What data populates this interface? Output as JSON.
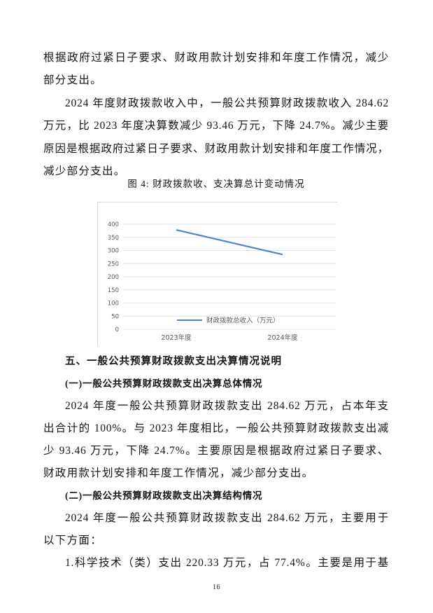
{
  "text": {
    "p1": {
      "l1": "根据政府过紧日子要求、财政用款计划安排和年度工作情况，减少",
      "l2": "部分支出。"
    },
    "p2": {
      "l1": "2024 年度财政拨款收入中，一般公共预算财政拨款收入 284.62",
      "l2": "万元，比 2023 年度决算数减少 93.46 万元，下降 24.7%。减少主要",
      "l3": "原因是根据政府过紧日子要求、财政用款计划安排和年度工作情况，",
      "l4": "减少部分支出。"
    },
    "figure_caption": "图 4: 财政拨款收、支决算总计变动情况",
    "heading5": "五、一般公共预算财政拨款支出决算情况说明",
    "sub1": "(一)一般公共预算财政拨款支出决算总体情况",
    "p3": {
      "l1": "2024 年度一般公共预算财政拨款支出 284.62 万元，占本年支",
      "l2": "出合计的 100%。与 2023 年度相比，一般公共预算财政拨款支出减",
      "l3": "少 93.46 万元，下降 24.7%。主要原因是根据政府过紧日子要求、",
      "l4": "财政用款计划安排和年度工作情况，减少部分支出。"
    },
    "sub2": "(二)一般公共预算财政拨款支出决算结构情况",
    "p4": {
      "l1": "2024 年度一般公共预算财政拨款支出 284.62 万元，主要用于",
      "l2": "以下方面："
    },
    "p5": {
      "l1": "1.科学技术（类）支出 220.33 万元，占 77.4%。主要是用于基"
    },
    "page_number": "16"
  },
  "chart_data": {
    "type": "line",
    "title": "图 4: 财政拨款收、支决算总计变动情况",
    "categories": [
      "2023年度",
      "2024年度"
    ],
    "series": [
      {
        "name": "财政拨款总收入（万元）",
        "values": [
          378.08,
          284.62
        ],
        "color": "#4e86c8"
      }
    ],
    "xlabel": "",
    "ylabel": "",
    "ylim": [
      0,
      400
    ],
    "ytick_step": 50,
    "grid": true,
    "legend_position": "bottom-inside",
    "axis_label_color": "#595959",
    "grid_color": "#e4e4e4"
  }
}
